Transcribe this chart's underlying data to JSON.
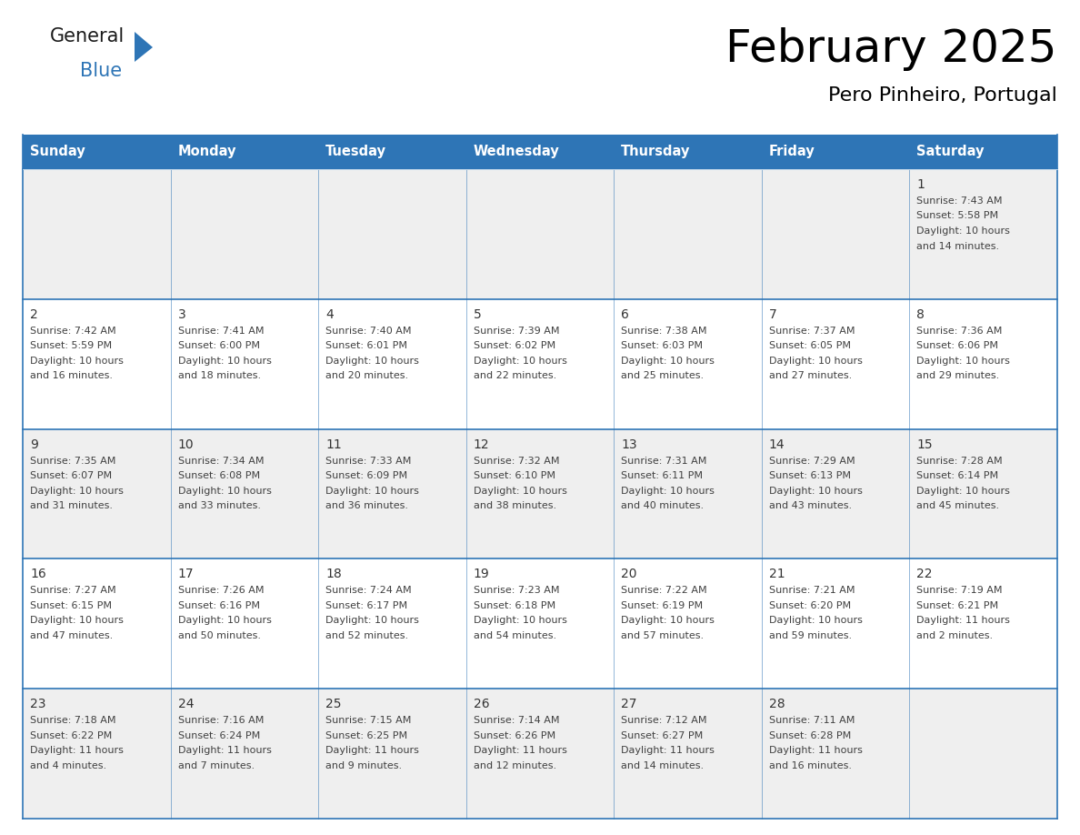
{
  "title": "February 2025",
  "subtitle": "Pero Pinheiro, Portugal",
  "days_of_week": [
    "Sunday",
    "Monday",
    "Tuesday",
    "Wednesday",
    "Thursday",
    "Friday",
    "Saturday"
  ],
  "header_bg": "#2E75B6",
  "header_text": "#FFFFFF",
  "row_bg_odd": "#EFEFEF",
  "row_bg_even": "#FFFFFF",
  "grid_line_color": "#2E75B6",
  "text_color": "#404040",
  "day_num_color": "#333333",
  "logo_general_color": "#1a1a1a",
  "logo_blue_color": "#2E75B6",
  "triangle_color": "#2E75B6",
  "calendar_data": [
    [
      null,
      null,
      null,
      null,
      null,
      null,
      {
        "day": "1",
        "sunrise": "7:43 AM",
        "sunset": "5:58 PM",
        "daylight_h": "10 hours",
        "daylight_m": "and 14 minutes."
      }
    ],
    [
      {
        "day": "2",
        "sunrise": "7:42 AM",
        "sunset": "5:59 PM",
        "daylight_h": "10 hours",
        "daylight_m": "and 16 minutes."
      },
      {
        "day": "3",
        "sunrise": "7:41 AM",
        "sunset": "6:00 PM",
        "daylight_h": "10 hours",
        "daylight_m": "and 18 minutes."
      },
      {
        "day": "4",
        "sunrise": "7:40 AM",
        "sunset": "6:01 PM",
        "daylight_h": "10 hours",
        "daylight_m": "and 20 minutes."
      },
      {
        "day": "5",
        "sunrise": "7:39 AM",
        "sunset": "6:02 PM",
        "daylight_h": "10 hours",
        "daylight_m": "and 22 minutes."
      },
      {
        "day": "6",
        "sunrise": "7:38 AM",
        "sunset": "6:03 PM",
        "daylight_h": "10 hours",
        "daylight_m": "and 25 minutes."
      },
      {
        "day": "7",
        "sunrise": "7:37 AM",
        "sunset": "6:05 PM",
        "daylight_h": "10 hours",
        "daylight_m": "and 27 minutes."
      },
      {
        "day": "8",
        "sunrise": "7:36 AM",
        "sunset": "6:06 PM",
        "daylight_h": "10 hours",
        "daylight_m": "and 29 minutes."
      }
    ],
    [
      {
        "day": "9",
        "sunrise": "7:35 AM",
        "sunset": "6:07 PM",
        "daylight_h": "10 hours",
        "daylight_m": "and 31 minutes."
      },
      {
        "day": "10",
        "sunrise": "7:34 AM",
        "sunset": "6:08 PM",
        "daylight_h": "10 hours",
        "daylight_m": "and 33 minutes."
      },
      {
        "day": "11",
        "sunrise": "7:33 AM",
        "sunset": "6:09 PM",
        "daylight_h": "10 hours",
        "daylight_m": "and 36 minutes."
      },
      {
        "day": "12",
        "sunrise": "7:32 AM",
        "sunset": "6:10 PM",
        "daylight_h": "10 hours",
        "daylight_m": "and 38 minutes."
      },
      {
        "day": "13",
        "sunrise": "7:31 AM",
        "sunset": "6:11 PM",
        "daylight_h": "10 hours",
        "daylight_m": "and 40 minutes."
      },
      {
        "day": "14",
        "sunrise": "7:29 AM",
        "sunset": "6:13 PM",
        "daylight_h": "10 hours",
        "daylight_m": "and 43 minutes."
      },
      {
        "day": "15",
        "sunrise": "7:28 AM",
        "sunset": "6:14 PM",
        "daylight_h": "10 hours",
        "daylight_m": "and 45 minutes."
      }
    ],
    [
      {
        "day": "16",
        "sunrise": "7:27 AM",
        "sunset": "6:15 PM",
        "daylight_h": "10 hours",
        "daylight_m": "and 47 minutes."
      },
      {
        "day": "17",
        "sunrise": "7:26 AM",
        "sunset": "6:16 PM",
        "daylight_h": "10 hours",
        "daylight_m": "and 50 minutes."
      },
      {
        "day": "18",
        "sunrise": "7:24 AM",
        "sunset": "6:17 PM",
        "daylight_h": "10 hours",
        "daylight_m": "and 52 minutes."
      },
      {
        "day": "19",
        "sunrise": "7:23 AM",
        "sunset": "6:18 PM",
        "daylight_h": "10 hours",
        "daylight_m": "and 54 minutes."
      },
      {
        "day": "20",
        "sunrise": "7:22 AM",
        "sunset": "6:19 PM",
        "daylight_h": "10 hours",
        "daylight_m": "and 57 minutes."
      },
      {
        "day": "21",
        "sunrise": "7:21 AM",
        "sunset": "6:20 PM",
        "daylight_h": "10 hours",
        "daylight_m": "and 59 minutes."
      },
      {
        "day": "22",
        "sunrise": "7:19 AM",
        "sunset": "6:21 PM",
        "daylight_h": "11 hours",
        "daylight_m": "and 2 minutes."
      }
    ],
    [
      {
        "day": "23",
        "sunrise": "7:18 AM",
        "sunset": "6:22 PM",
        "daylight_h": "11 hours",
        "daylight_m": "and 4 minutes."
      },
      {
        "day": "24",
        "sunrise": "7:16 AM",
        "sunset": "6:24 PM",
        "daylight_h": "11 hours",
        "daylight_m": "and 7 minutes."
      },
      {
        "day": "25",
        "sunrise": "7:15 AM",
        "sunset": "6:25 PM",
        "daylight_h": "11 hours",
        "daylight_m": "and 9 minutes."
      },
      {
        "day": "26",
        "sunrise": "7:14 AM",
        "sunset": "6:26 PM",
        "daylight_h": "11 hours",
        "daylight_m": "and 12 minutes."
      },
      {
        "day": "27",
        "sunrise": "7:12 AM",
        "sunset": "6:27 PM",
        "daylight_h": "11 hours",
        "daylight_m": "and 14 minutes."
      },
      {
        "day": "28",
        "sunrise": "7:11 AM",
        "sunset": "6:28 PM",
        "daylight_h": "11 hours",
        "daylight_m": "and 16 minutes."
      },
      null
    ]
  ]
}
